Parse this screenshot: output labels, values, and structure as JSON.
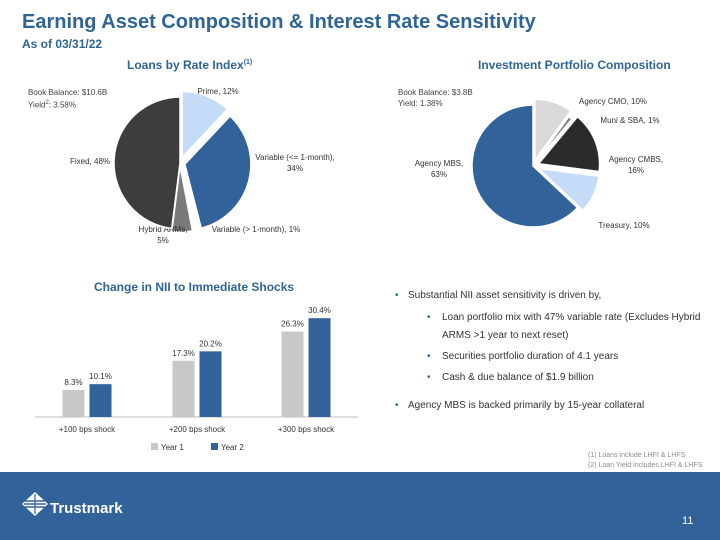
{
  "header": {
    "title": "Earning Asset Composition & Interest Rate Sensitivity",
    "subtitle": "As of 03/31/22"
  },
  "loans": {
    "title": "Loans by Rate Index",
    "title_sup": "(1)",
    "note_line1": "Book Balance: $10.6B",
    "note_line2_prefix": "Yield",
    "note_line2_sup": "2",
    "note_line2_suffix": ": 3.58%"
  },
  "investments": {
    "title": "Investment Portfolio Composition",
    "note_line1": "Book Balance: $3.8B",
    "note_line2": "Yield: 1.38%"
  },
  "nii": {
    "title": "Change in NII to Immediate Shocks"
  },
  "chart_data": [
    {
      "type": "pie",
      "title": "Loans by Rate Index",
      "slices": [
        {
          "label": "Prime",
          "value": 12,
          "color": "#c5dcf9",
          "text": [
            "Prime, 12%"
          ]
        },
        {
          "label": "Variable (<= 1-month)",
          "value": 34,
          "color": "#31629a",
          "text": [
            "Variable (<= 1-month),",
            "34%"
          ]
        },
        {
          "label": "Variable (> 1-month)",
          "value": 1,
          "color": "#ffffff",
          "text": [
            "Variable (> 1-month), 1%"
          ]
        },
        {
          "label": "Hybrid ARMs",
          "value": 5,
          "color": "#7a7a7a",
          "text": [
            "Hybrid ARMs,",
            "5%"
          ]
        },
        {
          "label": "Fixed",
          "value": 48,
          "color": "#3d3d3d",
          "text": [
            "Fixed, 48%"
          ]
        }
      ]
    },
    {
      "type": "pie",
      "title": "Investment Portfolio Composition",
      "slices": [
        {
          "label": "Agency CMO",
          "value": 10,
          "color": "#d9d9d9",
          "text": [
            "Agency CMO, 10%"
          ]
        },
        {
          "label": "Muni & SBA",
          "value": 1,
          "color": "#7f7f7f",
          "text": [
            "Muni & SBA, 1%"
          ]
        },
        {
          "label": "Agency CMBS",
          "value": 16,
          "color": "#2b2b2b",
          "text": [
            "Agency CMBS,",
            "16%"
          ]
        },
        {
          "label": "Treasury",
          "value": 10,
          "color": "#c5dcf9",
          "text": [
            "Treasury, 10%"
          ]
        },
        {
          "label": "Agency MBS",
          "value": 63,
          "color": "#31629a",
          "text": [
            "Agency MBS,",
            "63%"
          ]
        }
      ]
    },
    {
      "type": "bar",
      "title": "Change in NII to Immediate Shocks",
      "categories": [
        "+100 bps shock",
        "+200 bps shock",
        "+300 bps shock"
      ],
      "series": [
        {
          "name": "Year 1",
          "values": [
            8.3,
            17.3,
            26.3
          ],
          "labels": [
            "8.3%",
            "17.3%",
            "26.3%"
          ],
          "color": "#c8c8c8"
        },
        {
          "name": "Year 2",
          "values": [
            10.1,
            20.2,
            30.4
          ],
          "labels": [
            "10.1%",
            "20.2%",
            "30.4%"
          ],
          "color": "#31629a"
        }
      ],
      "ylim": [
        0,
        32
      ],
      "legend": "bottom"
    }
  ],
  "bullets": [
    {
      "level": 1,
      "text": "Substantial NII asset sensitivity is driven by,"
    },
    {
      "level": 2,
      "text": "Loan portfolio mix with 47% variable rate (Excludes Hybrid ARMS >1 year to next reset)"
    },
    {
      "level": 2,
      "text": "Securities portfolio duration of 4.1 years"
    },
    {
      "level": 2,
      "text": "Cash & due balance of $1.9 billion"
    },
    {
      "level": 1,
      "text": "Agency MBS is backed primarily by 15-year collateral"
    }
  ],
  "footnotes": {
    "line1": "(1) Loans include LHFI & LHFS",
    "line2": "(2) Loan Yield includes LHFI & LHFS"
  },
  "footer": {
    "brand": "Trustmark",
    "page_number": "11"
  }
}
